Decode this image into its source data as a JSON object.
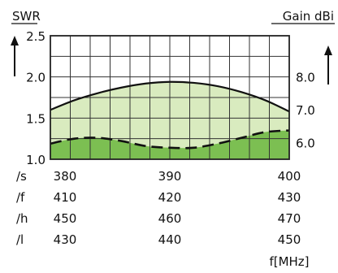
{
  "chart_data": {
    "type": "line",
    "left_axis": {
      "label": "SWR",
      "ticks": [
        "2.5",
        "2.0",
        "1.5",
        "1.0"
      ],
      "ylim": [
        1.0,
        2.5
      ]
    },
    "right_axis": {
      "label": "Gain dBi",
      "ticks": [
        "8.0",
        "7.0",
        "6.0"
      ]
    },
    "x_unit_label": "f[MHz]",
    "grid": true,
    "series": [
      {
        "axis": "right",
        "line_style": "solid",
        "x": [
          0,
          0.1,
          0.2,
          0.3,
          0.4,
          0.5,
          0.6,
          0.7,
          0.8,
          0.9,
          1.0
        ],
        "values": [
          7.0,
          7.29,
          7.51,
          7.68,
          7.8,
          7.85,
          7.82,
          7.72,
          7.54,
          7.29,
          6.95
        ]
      },
      {
        "axis": "left",
        "line_style": "dashed",
        "x": [
          0,
          0.1,
          0.2,
          0.3,
          0.4,
          0.5,
          0.6,
          0.7,
          0.8,
          0.9,
          1.0
        ],
        "values": [
          1.19,
          1.25,
          1.26,
          1.22,
          1.16,
          1.14,
          1.14,
          1.19,
          1.26,
          1.33,
          1.35
        ]
      }
    ],
    "frequency_table": [
      {
        "label": "/s",
        "values": [
          "380",
          "390",
          "400"
        ]
      },
      {
        "label": "/f",
        "values": [
          "410",
          "420",
          "430"
        ]
      },
      {
        "label": "/h",
        "values": [
          "450",
          "460",
          "470"
        ]
      },
      {
        "label": "/l",
        "values": [
          "430",
          "440",
          "450"
        ]
      }
    ]
  },
  "colors": {
    "grid": "#333333",
    "upper_fill": "#d9ebbf",
    "lower_fill": "#7cbf52",
    "frame": "#222222"
  }
}
